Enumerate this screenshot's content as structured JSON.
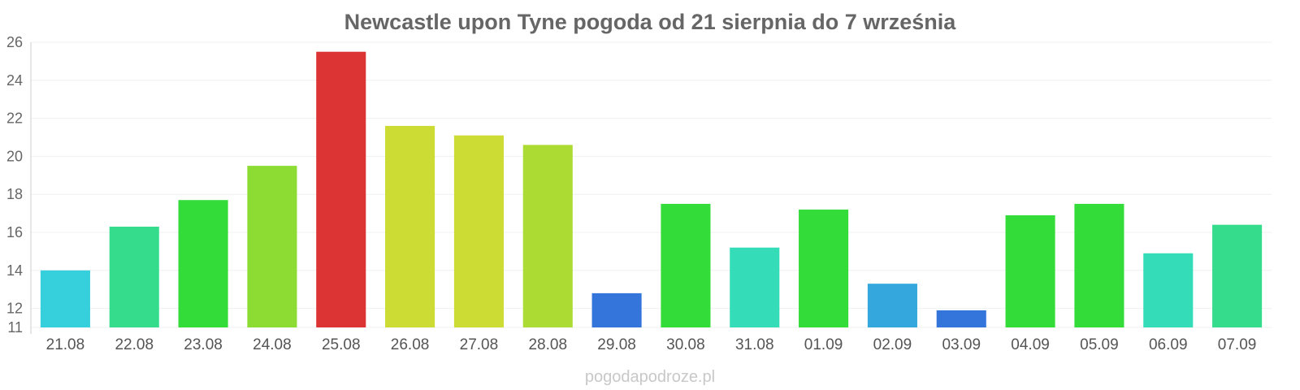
{
  "chart_data": {
    "type": "bar",
    "title": "Newcastle upon Tyne pogoda od 21 sierpnia do 7 września",
    "xlabel": "",
    "ylabel": "",
    "ylim": [
      11,
      26
    ],
    "yticks": [
      11,
      12,
      14,
      16,
      18,
      20,
      22,
      24,
      26
    ],
    "grid": true,
    "legend": "none",
    "categories": [
      "21.08",
      "22.08",
      "23.08",
      "24.08",
      "25.08",
      "26.08",
      "27.08",
      "28.08",
      "29.08",
      "30.08",
      "31.08",
      "01.09",
      "02.09",
      "03.09",
      "04.09",
      "05.09",
      "06.09",
      "07.09"
    ],
    "values": [
      14.0,
      16.3,
      17.7,
      19.5,
      25.5,
      21.6,
      21.1,
      20.6,
      12.8,
      17.5,
      15.2,
      17.2,
      13.3,
      11.9,
      16.9,
      17.5,
      14.9,
      16.4
    ],
    "colors": [
      "#36cfdc",
      "#34dc8c",
      "#34dc3a",
      "#8cdc34",
      "#dc3434",
      "#ccdc34",
      "#ccdc34",
      "#acdc34",
      "#3475dc",
      "#34dc3a",
      "#34dcb8",
      "#34dc3a",
      "#34a8dc",
      "#3475dc",
      "#34dc3a",
      "#34dc3a",
      "#34dcb8",
      "#34dc8c"
    ]
  },
  "source": "pogodapodroze.pl"
}
